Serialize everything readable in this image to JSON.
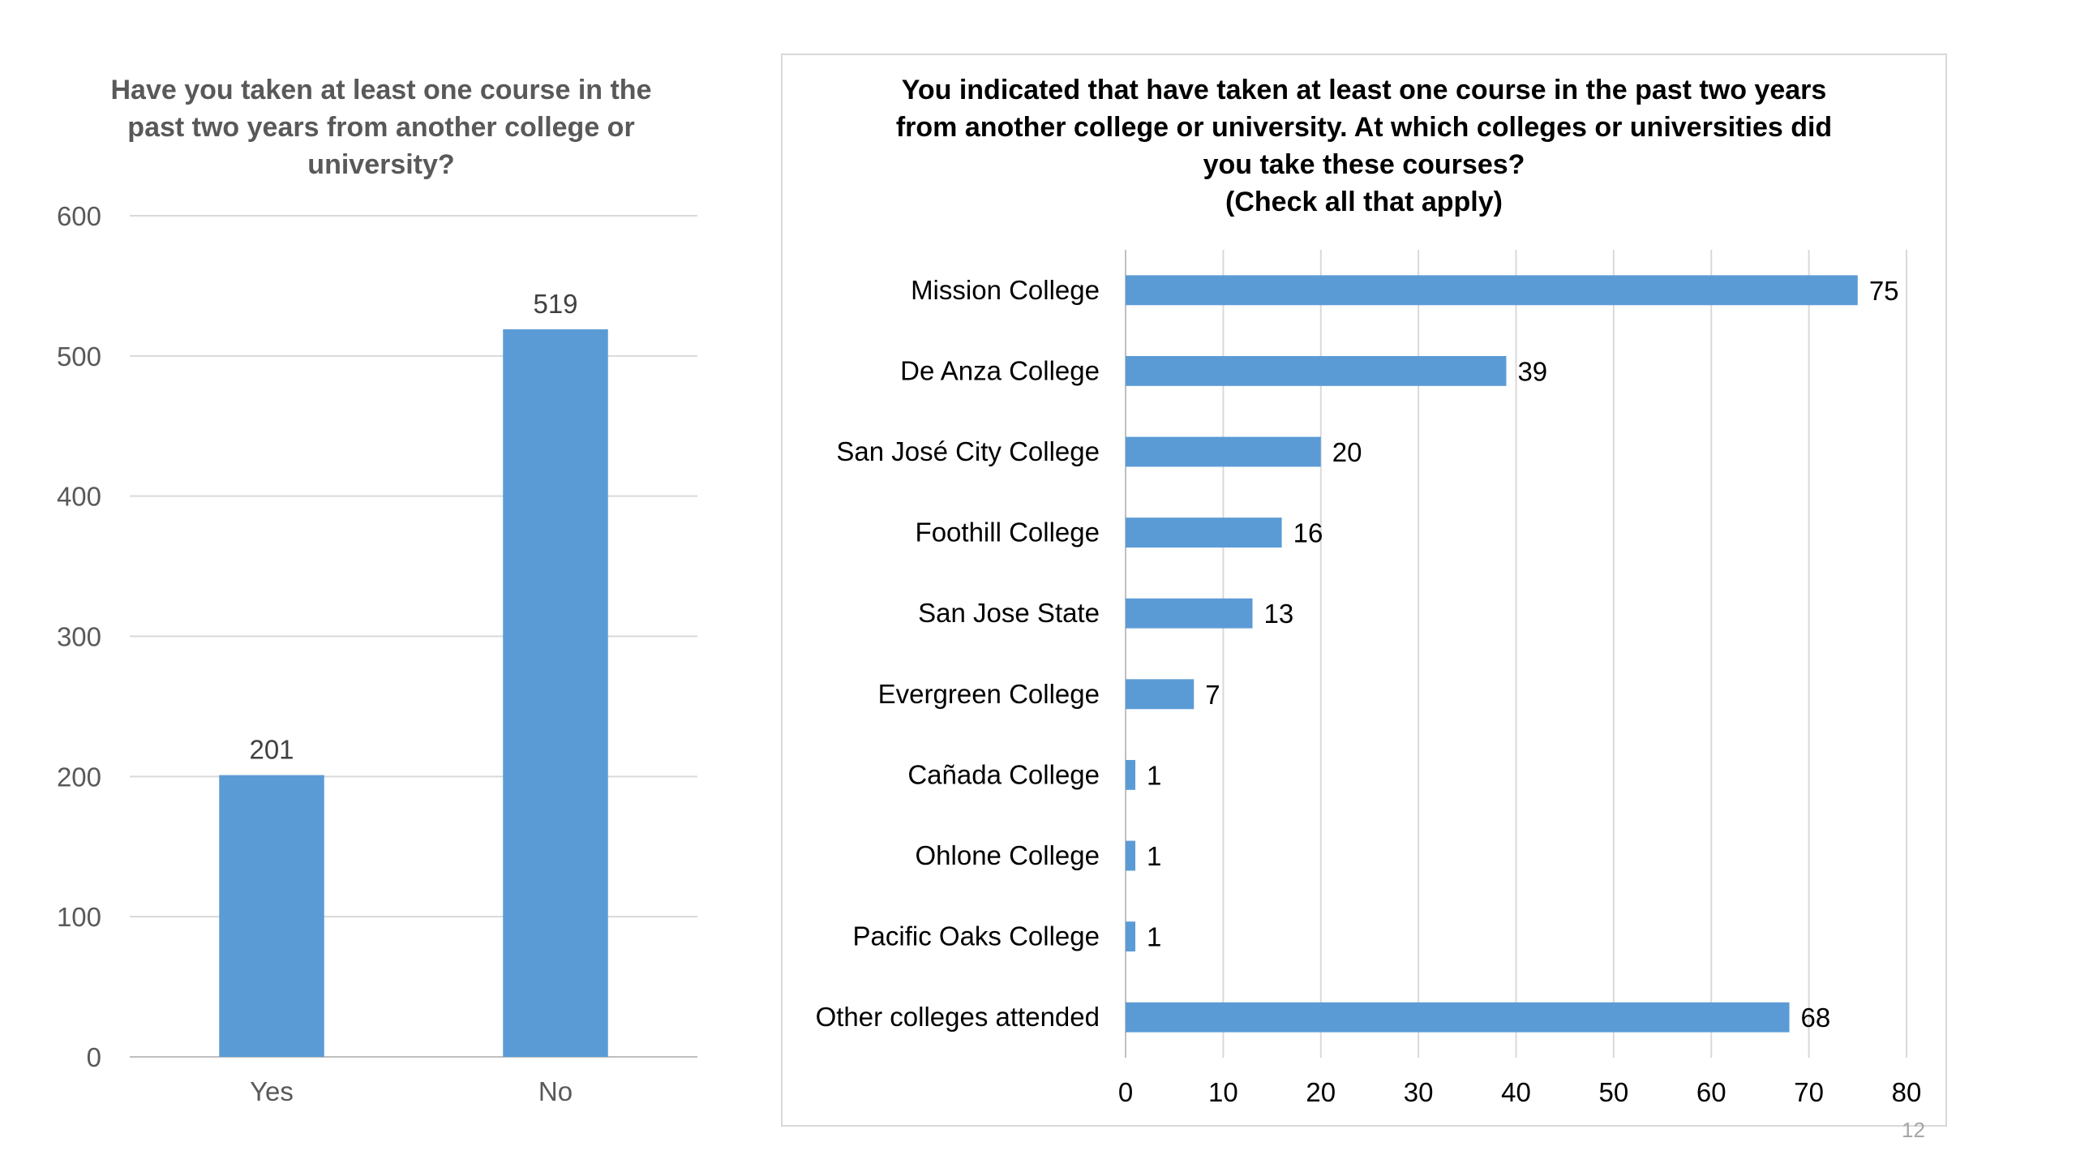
{
  "page_number": "12",
  "chart_data": [
    {
      "type": "bar",
      "title": "Have you taken at least one course in the\npast two years from another college or\nuniversity?",
      "categories": [
        "Yes",
        "No"
      ],
      "values": [
        201,
        519
      ],
      "data_labels": [
        "201",
        "519"
      ],
      "ylim": [
        0,
        600
      ],
      "yticks": [
        "0",
        "100",
        "200",
        "300",
        "400",
        "500",
        "600"
      ],
      "grid": true,
      "legend": "none",
      "bar_color": "#5B9BD5"
    },
    {
      "type": "bar",
      "orientation": "horizontal",
      "title": "You indicated that have taken at least one course in the past two years\nfrom another college or university. At which colleges or universities did\nyou take these courses?\n(Check all that apply)",
      "categories": [
        "Mission College",
        "De Anza College",
        "San José City College",
        "Foothill College",
        "San Jose State",
        "Evergreen College",
        "Cañada College",
        "Ohlone College",
        "Pacific Oaks College",
        "Other colleges attended"
      ],
      "values": [
        75,
        39,
        20,
        16,
        13,
        7,
        1,
        1,
        1,
        68
      ],
      "data_labels": [
        "75",
        "39",
        "20",
        "16",
        "13",
        "7",
        "1",
        "1",
        "1",
        "68"
      ],
      "xlim": [
        0,
        80
      ],
      "xticks": [
        "0",
        "10",
        "20",
        "30",
        "40",
        "50",
        "60",
        "70",
        "80"
      ],
      "grid": true,
      "legend": "none",
      "bar_color": "#5B9BD5"
    }
  ]
}
